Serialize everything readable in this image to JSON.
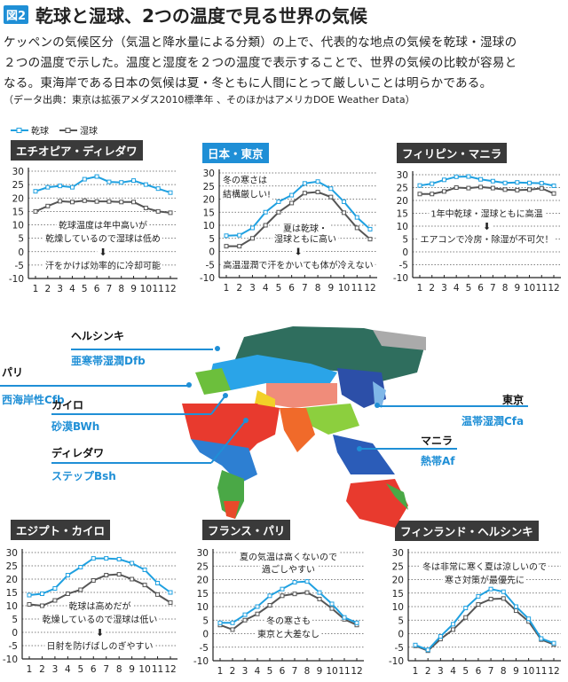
{
  "header": {
    "figure_badge": "図2",
    "title": "乾球と湿球、2つの温度で見る世界の気候",
    "body_lines": [
      "ケッペンの気候区分（気温と降水量による分類）の上で、代表的な地点の気候を乾球・湿球の",
      "２つの温度で示した。温度と湿度を２つの温度で表示することで、世界の気候の比較が容易と",
      "なる。東海岸である日本の気候は夏・冬ともに人間にとって厳しいことは明らかである。"
    ],
    "source": "（データ出典：東京は拡張アメダス2010標準年 、そのほかはアメリカDOE Weather Data）"
  },
  "legend": {
    "dry": "乾球",
    "wet": "湿球"
  },
  "colors": {
    "dry": "#1fa0e0",
    "wet": "#555555",
    "title_dark": "#3a3a3a",
    "title_blue": "#1f8fd6",
    "accent": "#1f8fd6"
  },
  "map": {
    "labels": [
      {
        "city": "ヘルシンキ",
        "zone": "亜寒帯湿潤Dfb"
      },
      {
        "city": "パリ",
        "zone": "西海岸性Cfb"
      },
      {
        "city": "カイロ",
        "zone": "砂漠BWh"
      },
      {
        "city": "ディレダワ",
        "zone": "ステップBsh"
      },
      {
        "city": "東京",
        "zone": "温帯湿潤Cfa"
      },
      {
        "city": "マニラ",
        "zone": "熱帯Af"
      }
    ]
  },
  "chart_data": [
    {
      "type": "line",
      "title": "エチオピア・ディレダワ",
      "x": [
        1,
        2,
        3,
        4,
        5,
        6,
        7,
        8,
        9,
        10,
        11,
        12
      ],
      "ylim": [
        -10,
        30
      ],
      "yticks": [
        30,
        25,
        20,
        15,
        10,
        5,
        0,
        -5,
        -10
      ],
      "series": [
        {
          "name": "乾球",
          "values": [
            22.5,
            24,
            24.5,
            24,
            27,
            28,
            26,
            25.8,
            26.5,
            25,
            23.5,
            22
          ]
        },
        {
          "name": "湿球",
          "values": [
            15,
            17,
            18.8,
            18.5,
            19,
            18.7,
            18.7,
            18.5,
            18.5,
            16.3,
            15,
            14.5
          ]
        }
      ],
      "annotations": [
        "乾球温度は年中高いが",
        "乾燥しているので湿球は低め",
        "⬇",
        "汗をかけば効率的に冷却可能"
      ]
    },
    {
      "type": "line",
      "title": "日本・東京",
      "x": [
        1,
        2,
        3,
        4,
        5,
        6,
        7,
        8,
        9,
        10,
        11,
        12
      ],
      "ylim": [
        -10,
        30
      ],
      "yticks": [
        30,
        25,
        20,
        15,
        10,
        5,
        0,
        -5,
        -10
      ],
      "series": [
        {
          "name": "乾球",
          "values": [
            6,
            6.2,
            9,
            15,
            19,
            21.5,
            26,
            26.7,
            24,
            19,
            13,
            8.5
          ]
        },
        {
          "name": "湿球",
          "values": [
            2,
            2,
            5,
            10,
            15,
            18.5,
            22.3,
            22.7,
            20.8,
            14.8,
            9,
            4.7
          ]
        }
      ],
      "annotations": [
        "冬の寒さは",
        "結構厳しい!",
        "夏は乾球・",
        "湿球ともに高い",
        "⬇",
        "高温湿潤で汗をかいても体が冷えない"
      ]
    },
    {
      "type": "line",
      "title": "フィリピン・マニラ",
      "x": [
        1,
        2,
        3,
        4,
        5,
        6,
        7,
        8,
        9,
        10,
        11,
        12
      ],
      "ylim": [
        -10,
        30
      ],
      "yticks": [
        30,
        25,
        20,
        15,
        10,
        5,
        0,
        -5,
        -10
      ],
      "series": [
        {
          "name": "乾球",
          "values": [
            25.8,
            26.5,
            28,
            29.2,
            29.3,
            28.2,
            27.5,
            26.8,
            27,
            26.8,
            26.7,
            25.7
          ]
        },
        {
          "name": "湿球",
          "values": [
            22.5,
            22.5,
            23.5,
            25,
            24.8,
            25.2,
            24.8,
            24.2,
            24,
            24.2,
            24.7,
            22.7
          ]
        }
      ],
      "annotations": [
        "1年中乾球・湿球ともに高温",
        "⬇",
        "エアコンで冷房・除湿が不可欠！"
      ]
    },
    {
      "type": "line",
      "title": "エジプト・カイロ",
      "x": [
        1,
        2,
        3,
        4,
        5,
        6,
        7,
        8,
        9,
        10,
        11,
        12
      ],
      "ylim": [
        -10,
        30
      ],
      "yticks": [
        30,
        25,
        20,
        15,
        10,
        5,
        0,
        -5,
        -10
      ],
      "series": [
        {
          "name": "乾球",
          "values": [
            14,
            14.5,
            16.5,
            21.5,
            24.5,
            27.8,
            27.8,
            27.5,
            26,
            23.5,
            18.5,
            15
          ]
        },
        {
          "name": "湿球",
          "values": [
            10.5,
            10,
            12,
            14.5,
            16,
            19.5,
            21.5,
            21.8,
            20,
            17.8,
            14.2,
            11.2
          ]
        }
      ],
      "annotations": [
        "乾球は高めだが",
        "乾燥しているので湿球は低い",
        "⬇",
        "日射を防げばしのぎやすい"
      ]
    },
    {
      "type": "line",
      "title": "フランス・パリ",
      "x": [
        1,
        2,
        3,
        4,
        5,
        6,
        7,
        8,
        9,
        10,
        11,
        12
      ],
      "ylim": [
        -10,
        30
      ],
      "yticks": [
        30,
        25,
        20,
        15,
        10,
        5,
        0,
        -5,
        -10
      ],
      "series": [
        {
          "name": "乾球",
          "values": [
            4,
            4,
            7,
            10,
            14,
            16.5,
            19,
            19.3,
            15.2,
            11,
            6,
            4
          ]
        },
        {
          "name": "湿球",
          "values": [
            3.2,
            1.5,
            5,
            7.3,
            10.5,
            14,
            14.7,
            15.2,
            12.8,
            9.3,
            5.3,
            3.2
          ]
        }
      ],
      "annotations": [
        "夏の気温は高くないので",
        "過ごしやすい",
        "冬の寒さも",
        "東京と大差なし"
      ]
    },
    {
      "type": "line",
      "title": "フィンランド・ヘルシンキ",
      "x": [
        1,
        2,
        3,
        4,
        5,
        6,
        7,
        8,
        9,
        10,
        11,
        12
      ],
      "ylim": [
        -10,
        30
      ],
      "yticks": [
        30,
        25,
        20,
        15,
        10,
        5,
        0,
        -5,
        -10
      ],
      "series": [
        {
          "name": "乾球",
          "values": [
            -4.2,
            -6,
            -1,
            3.5,
            9.5,
            13.8,
            16.5,
            15.5,
            10,
            5.5,
            -1.8,
            -3.5
          ]
        },
        {
          "name": "湿球",
          "values": [
            -4.5,
            -6.3,
            -2,
            1.5,
            6,
            10.8,
            12.8,
            13,
            8.5,
            4.5,
            -2.2,
            -4
          ]
        }
      ],
      "annotations": [
        "冬は非常に寒く夏は涼しいので",
        "寒さ対策が最優先に"
      ]
    }
  ]
}
